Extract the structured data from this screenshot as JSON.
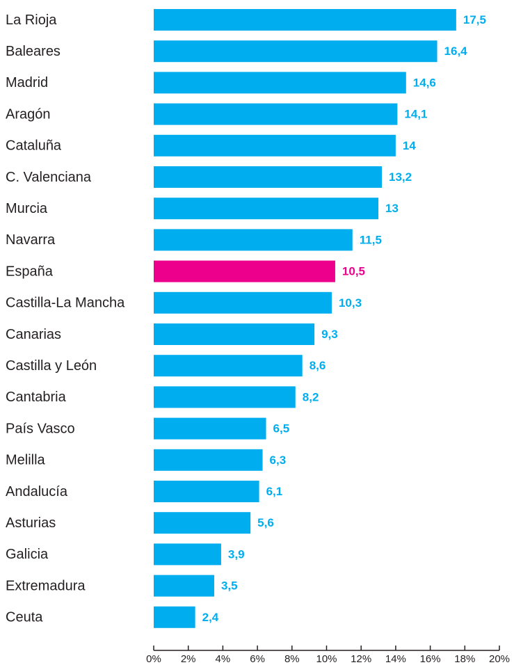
{
  "chart_data": {
    "type": "hbar",
    "categories": [
      "La Rioja",
      "Baleares",
      "Madrid",
      "Aragón",
      "Cataluña",
      "C. Valenciana",
      "Murcia",
      "Navarra",
      "España",
      "Castilla-La Mancha",
      "Canarias",
      "Castilla y León",
      "Cantabria",
      "País Vasco",
      "Melilla",
      "Andalucía",
      "Asturias",
      "Galicia",
      "Extremadura",
      "Ceuta"
    ],
    "values": [
      17.5,
      16.4,
      14.6,
      14.1,
      14,
      13.2,
      13,
      11.5,
      10.5,
      10.3,
      9.3,
      8.6,
      8.2,
      6.5,
      6.3,
      6.1,
      5.6,
      3.9,
      3.5,
      2.4
    ],
    "value_labels": [
      "17,5",
      "16,4",
      "14,6",
      "14,1",
      "14",
      "13,2",
      "13",
      "11,5",
      "10,5",
      "10,3",
      "9,3",
      "8,6",
      "8,2",
      "6,5",
      "6,3",
      "6,1",
      "5,6",
      "3,9",
      "3,5",
      "2,4"
    ],
    "colors": [
      "#00aeef",
      "#00aeef",
      "#00aeef",
      "#00aeef",
      "#00aeef",
      "#00aeef",
      "#00aeef",
      "#00aeef",
      "#ec008c",
      "#00aeef",
      "#00aeef",
      "#00aeef",
      "#00aeef",
      "#00aeef",
      "#00aeef",
      "#00aeef",
      "#00aeef",
      "#00aeef",
      "#00aeef",
      "#00aeef"
    ],
    "xlim": [
      0,
      20
    ],
    "xticks": [
      {
        "value": 0,
        "label": "0%"
      },
      {
        "value": 2,
        "label": "2%"
      },
      {
        "value": 4,
        "label": "4%"
      },
      {
        "value": 6,
        "label": "6%"
      },
      {
        "value": 8,
        "label": "8%"
      },
      {
        "value": 10,
        "label": "10%"
      },
      {
        "value": 12,
        "label": "12%"
      },
      {
        "value": 14,
        "label": "14%"
      },
      {
        "value": 16,
        "label": "16%"
      },
      {
        "value": 18,
        "label": "18%"
      },
      {
        "value": 20,
        "label": "20%"
      }
    ],
    "grid": false
  }
}
